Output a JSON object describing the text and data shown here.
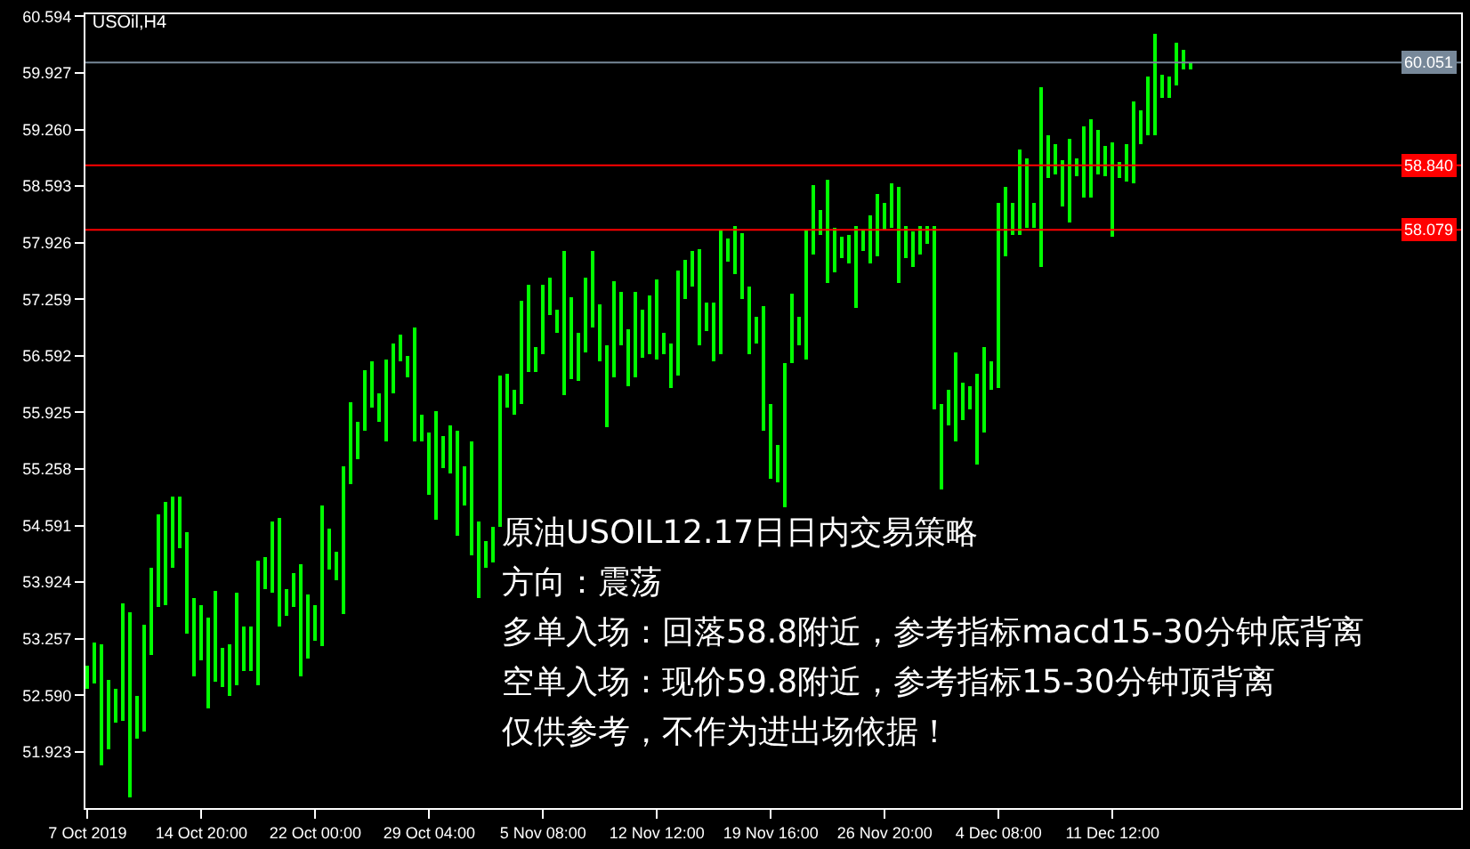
{
  "chart_data": {
    "type": "bar",
    "title": "USOil,H4",
    "categories": [
      "7 Oct 2019",
      null,
      null,
      null,
      null,
      null,
      null,
      null,
      null,
      null,
      null,
      null,
      null,
      null,
      null,
      null,
      "14 Oct 20:00",
      null,
      null,
      null,
      null,
      null,
      null,
      null,
      null,
      null,
      null,
      null,
      null,
      null,
      null,
      null,
      "22 Oct 00:00",
      null,
      null,
      null,
      null,
      null,
      null,
      null,
      null,
      null,
      null,
      null,
      null,
      null,
      null,
      null,
      "29 Oct 04:00",
      null,
      null,
      null,
      null,
      null,
      null,
      null,
      null,
      null,
      null,
      null,
      null,
      null,
      null,
      null,
      "5 Nov 08:00",
      null,
      null,
      null,
      null,
      null,
      null,
      null,
      null,
      null,
      null,
      null,
      null,
      null,
      null,
      null,
      "12 Nov 12:00",
      null,
      null,
      null,
      null,
      null,
      null,
      null,
      null,
      null,
      null,
      null,
      null,
      null,
      null,
      null,
      "19 Nov 16:00",
      null,
      null,
      null,
      null,
      null,
      null,
      null,
      null,
      null,
      null,
      null,
      null,
      null,
      null,
      null,
      "26 Nov 20:00",
      null,
      null,
      null,
      null,
      null,
      null,
      null,
      null,
      null,
      null,
      null,
      null,
      null,
      null,
      null,
      "4 Dec 08:00",
      null,
      null,
      null,
      null,
      null,
      null,
      null,
      null,
      null,
      null,
      null,
      null,
      null,
      null,
      null,
      "11 Dec 12:00",
      null,
      null,
      null,
      null,
      null,
      null,
      null,
      null,
      null,
      null,
      null
    ],
    "base": [
      52.67,
      52.73,
      51.76,
      51.96,
      52.27,
      52.28,
      51.38,
      52.08,
      52.17,
      53.06,
      53.64,
      53.66,
      54.09,
      54.33,
      53.32,
      52.82,
      53.01,
      52.44,
      52.75,
      52.68,
      52.58,
      52.7,
      52.87,
      52.87,
      52.7,
      53.84,
      53.79,
      53.41,
      53.53,
      53.64,
      52.82,
      53.03,
      53.23,
      53.16,
      54.07,
      53.95,
      53.55,
      55.09,
      55.38,
      55.7,
      55.98,
      55.82,
      55.58,
      56.15,
      56.52,
      56.34,
      55.58,
      55.59,
      54.96,
      54.66,
      55.27,
      55.2,
      54.47,
      54.82,
      54.25,
      53.74,
      54.09,
      54.16,
      54.57,
      55.98,
      55.89,
      56.03,
      56.4,
      56.41,
      56.62,
      57.07,
      56.86,
      56.12,
      56.31,
      56.29,
      56.63,
      56.93,
      56.52,
      55.75,
      56.34,
      56.72,
      56.24,
      56.33,
      56.56,
      56.62,
      56.55,
      56.62,
      56.22,
      56.36,
      57.26,
      57.4,
      56.72,
      56.88,
      56.52,
      56.62,
      57.71,
      57.56,
      57.26,
      56.62,
      56.74,
      55.7,
      55.14,
      55.11,
      54.8,
      56.5,
      56.71,
      56.55,
      57.78,
      58.01,
      57.45,
      57.57,
      57.75,
      57.69,
      57.15,
      57.83,
      57.69,
      57.76,
      58.08,
      58.1,
      57.45,
      57.75,
      57.64,
      57.78,
      57.92,
      55.96,
      55.02,
      55.77,
      55.58,
      55.84,
      55.96,
      55.32,
      55.68,
      56.2,
      56.22,
      57.76,
      58.01,
      58.01,
      58.11,
      58.11,
      57.65,
      58.69,
      58.74,
      58.35,
      58.16,
      58.7,
      58.46,
      58.46,
      58.74,
      58.7,
      57.99,
      58.69,
      58.65,
      58.63,
      59.08,
      59.19,
      59.19,
      59.64,
      59.64,
      59.78,
      59.98,
      59.98
    ],
    "values": [
      0.26,
      0.49,
      1.44,
      0.82,
      0.39,
      1.4,
      2.19,
      0.5,
      1.26,
      1.03,
      1.08,
      1.2,
      0.84,
      0.6,
      1.19,
      0.92,
      0.65,
      1.07,
      1.07,
      0.46,
      0.62,
      1.1,
      0.54,
      0.54,
      1.48,
      0.38,
      0.85,
      1.27,
      0.31,
      0.39,
      1.32,
      0.75,
      0.43,
      1.66,
      0.48,
      0.33,
      1.75,
      0.96,
      0.43,
      0.73,
      0.54,
      0.33,
      0.97,
      0.59,
      0.32,
      0.25,
      1.35,
      0.3,
      0.72,
      1.29,
      0.38,
      0.57,
      1.23,
      0.48,
      1.34,
      0.9,
      0.31,
      0.41,
      1.79,
      0.4,
      0.31,
      1.21,
      1.02,
      0.29,
      0.8,
      0.45,
      0.28,
      1.71,
      0.97,
      0.57,
      0.89,
      0.89,
      0.67,
      0.97,
      1.13,
      0.63,
      0.67,
      1.02,
      0.58,
      0.68,
      0.94,
      0.24,
      0.52,
      1.23,
      0.47,
      0.42,
      1.13,
      0.33,
      0.69,
      1.46,
      0.26,
      0.56,
      0.77,
      0.78,
      0.32,
      1.47,
      0.89,
      0.43,
      1.7,
      0.83,
      0.35,
      1.53,
      0.83,
      0.3,
      1.22,
      0.54,
      0.24,
      0.32,
      0.97,
      0.25,
      0.56,
      0.73,
      0.32,
      0.53,
      1.13,
      0.37,
      0.42,
      0.34,
      0.2,
      2.17,
      1.01,
      0.42,
      1.05,
      0.43,
      0.28,
      1.06,
      1.01,
      0.33,
      2.17,
      0.83,
      0.38,
      1.02,
      0.81,
      0.29,
      2.11,
      0.5,
      0.34,
      0.54,
      0.99,
      0.22,
      0.83,
      0.93,
      0.52,
      0.36,
      1.11,
      0.18,
      0.43,
      0.96,
      0.4,
      0.69,
      1.19,
      0.27,
      0.25,
      0.5,
      0.23,
      0.07
    ],
    "color": "#00ff00",
    "ylim": [
      51.26,
      60.62
    ],
    "yticks": [
      51.923,
      {
        "value": 52.59,
        "label": "52.590"
      },
      53.257,
      53.924,
      54.591,
      55.258,
      55.925,
      56.592,
      57.259,
      57.926,
      58.593,
      {
        "value": 59.26,
        "label": "59.260"
      },
      59.927,
      60.594
    ],
    "ref_lines": [
      {
        "axis": "y",
        "value": 60.051,
        "label": "60.051",
        "color": "#778899"
      },
      {
        "axis": "y",
        "value": 58.84,
        "label": "58.840",
        "color": "#ff0000"
      },
      {
        "axis": "y",
        "value": 58.079,
        "label": "58.079",
        "color": "#ff0000"
      }
    ],
    "annotations": [
      "原油USOIL12.17日日内交易策略",
      "方向：震荡",
      "多单入场：回落58.8附近，参考指标macd15-30分钟底背离",
      "空单入场：现价59.8附近，参考指标15-30分钟顶背离",
      "仅供参考，不作为进出场依据！"
    ]
  }
}
